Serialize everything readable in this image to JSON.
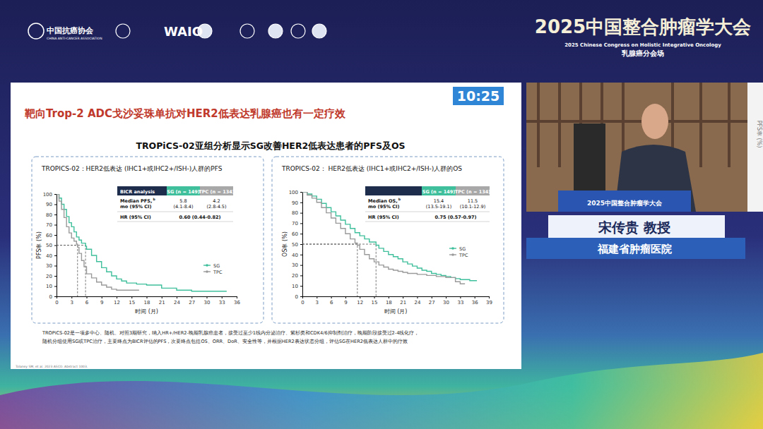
{
  "header": {
    "org_cn": "中国抗癌协会",
    "org_en": "CHINA ANTI-CANCER ASSOCIATION",
    "logo_text": "WAIO",
    "congress": "2025中国整合肿瘤学大会",
    "congress_en": "2025 Chinese Congress on Holistic Integrative Oncology",
    "session": "乳腺癌分会场"
  },
  "slide": {
    "timer": "10:25",
    "title": "靶向Trop-2 ADC戈沙妥珠单抗对HER2低表达乳腺癌也有一定疗效",
    "subtitle": "TROPiCS-02亚组分析显示SG改善HER2低表达患者的PFS及OS",
    "footnote": [
      "TROPiCS-02是一项多中心、随机、对照3期研究，纳入HR+/HER2-晚期乳腺癌患者，接受过至少1线内分泌治疗、紫杉类和CDK4/6抑制剂治疗，晚期阶段接受过2-4线化疗，",
      "随机分组使用SG或TPC治疗，主要终点为BICR评估的PFS，次要终点包括OS、ORR、DoR、安全性等，并根据HER2表达状态分组，评估SG在HER2低表达人群中的疗效"
    ],
    "reference": "Tolaney SM, et al. 2023 ASCO. Abstract 1003."
  },
  "speaker": {
    "name": "宋传贵 教授",
    "affiliation": "福建省肿瘤医院",
    "podium": "2025中国整合肿瘤学大会",
    "side_text": "PFS率 (%)"
  },
  "chart_data": [
    {
      "type": "step",
      "title": "TROPICS-02：HER2低表达 (IHC1+或IHC2+/ISH-)人群的PFS",
      "x_label": "时间 (月)",
      "y_label": "PFS率 (%)",
      "xlim": [
        0,
        36
      ],
      "xticks": [
        0,
        3,
        6,
        9,
        12,
        15,
        18,
        21,
        24,
        27,
        30,
        33,
        36
      ],
      "ylim": [
        0,
        100
      ],
      "yticks": [
        0,
        10,
        20,
        30,
        40,
        50,
        60,
        70,
        80,
        90,
        100
      ],
      "legend": "right",
      "median_line": 50,
      "series": [
        {
          "name": "SG",
          "color": "#3fbf9b",
          "x": [
            0,
            0.5,
            1,
            1.5,
            2,
            2.5,
            3,
            3.5,
            4,
            4.5,
            5,
            5.8,
            6,
            7,
            8,
            9,
            10,
            11,
            12,
            13,
            14,
            16,
            18,
            21,
            24,
            27,
            30,
            33,
            34
          ],
          "values": [
            100,
            96,
            90,
            85,
            78,
            72,
            68,
            63,
            58,
            55,
            52,
            49,
            46,
            40,
            34,
            28,
            24,
            20,
            17,
            15,
            13,
            12,
            11,
            8,
            6,
            5,
            5,
            5,
            5
          ]
        },
        {
          "name": "TPC",
          "color": "#9a9a9a",
          "x": [
            0,
            0.5,
            1,
            1.5,
            2,
            2.5,
            3,
            3.5,
            4,
            4.2,
            4.5,
            5,
            5.5,
            6,
            7,
            8,
            9,
            10,
            11,
            12,
            14,
            16.5
          ],
          "values": [
            100,
            93,
            85,
            77,
            68,
            62,
            57,
            54,
            51,
            48,
            42,
            35,
            29,
            22,
            18,
            14,
            11,
            9,
            7,
            6,
            6,
            6
          ]
        }
      ],
      "table": {
        "header": [
          "BICR analysis",
          "SG (n = 149)",
          "TPC (n = 134)"
        ],
        "rows": [
          {
            "label": "Median PFS,",
            "note": "b",
            "unit": "mo (95% CI)",
            "values": [
              5.8,
              4.2
            ],
            "ci": [
              "(4.1-8.4)",
              "(2.8-4.5)"
            ]
          },
          {
            "label": "HR (95% CI)",
            "text": "0.60 (0.44-0.82)"
          }
        ]
      }
    },
    {
      "type": "step",
      "title": "TROPICS-02： HER2低表达 (IHC1+或IHC2+/ISH-)人群的OS",
      "x_label": "时间 (月)",
      "y_label": "OS率 (%)",
      "xlim": [
        0,
        39
      ],
      "xticks": [
        0,
        3,
        6,
        9,
        12,
        15,
        18,
        21,
        24,
        27,
        30,
        33,
        36,
        39
      ],
      "ylim": [
        0,
        100
      ],
      "yticks": [
        0,
        10,
        20,
        30,
        40,
        50,
        60,
        70,
        80,
        90,
        100
      ],
      "legend": "right",
      "median_line": 50,
      "series": [
        {
          "name": "SG",
          "color": "#3fbf9b",
          "x": [
            0,
            1,
            2,
            3,
            4,
            5,
            6,
            7,
            8,
            9,
            10,
            11,
            12,
            13,
            14,
            15.4,
            16,
            17,
            18,
            19,
            20,
            21,
            22,
            23,
            24,
            25,
            26,
            27,
            28,
            29,
            30,
            31,
            32,
            33,
            35,
            36.5
          ],
          "values": [
            100,
            98,
            96,
            93,
            89,
            85,
            81,
            77,
            73,
            69,
            65,
            61,
            58,
            55,
            52,
            49,
            46,
            43,
            40,
            38,
            36,
            33,
            31,
            29,
            27,
            25,
            24,
            22,
            21,
            20,
            19,
            18,
            17,
            16,
            15,
            15
          ]
        },
        {
          "name": "TPC",
          "color": "#9a9a9a",
          "x": [
            0,
            1,
            2,
            3,
            4,
            5,
            6,
            7,
            8,
            9,
            10,
            11,
            11.5,
            12,
            13,
            14,
            15,
            16,
            17,
            18,
            19,
            20,
            21,
            22,
            24,
            26,
            28,
            30,
            32,
            33,
            34
          ],
          "values": [
            100,
            97,
            94,
            90,
            85,
            80,
            75,
            70,
            65,
            60,
            55,
            51,
            49,
            45,
            40,
            36,
            33,
            30,
            28,
            26,
            25,
            24,
            23,
            22,
            21,
            20,
            19,
            18,
            14,
            12,
            12
          ]
        }
      ],
      "table": {
        "header": [
          null,
          "SG (n = 149)",
          "TPC (n = 134)"
        ],
        "rows": [
          {
            "label": "Median OS,",
            "note": "b",
            "unit": "mo (95% CI)",
            "values": [
              15.4,
              11.5
            ],
            "ci": [
              "(13.5-19.1)",
              "(10.1-12.9)"
            ]
          },
          {
            "label": "HR (95% CI)",
            "text": "0.75 (0.57-0.97)"
          }
        ]
      }
    }
  ]
}
